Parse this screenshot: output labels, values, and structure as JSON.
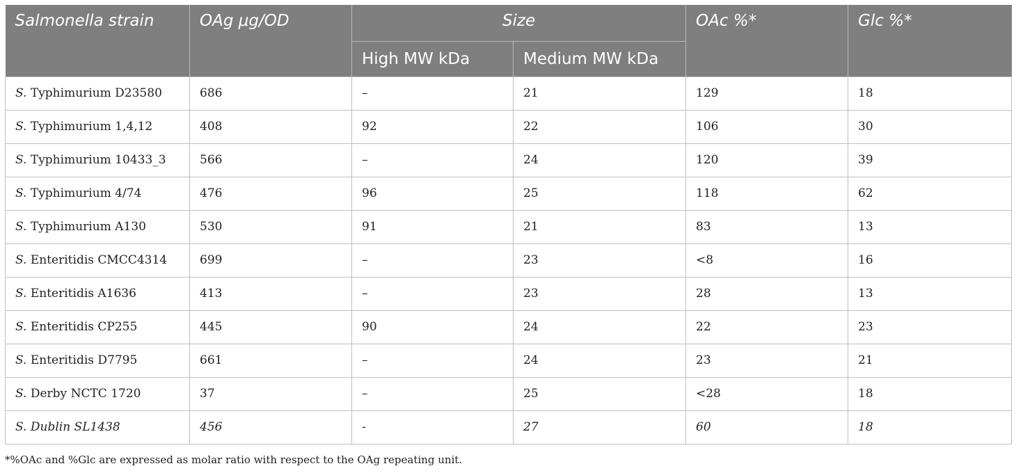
{
  "table": {
    "headers": {
      "strain": "Salmonella strain",
      "oag": "OAg μg/OD",
      "size": "Size",
      "high_mw": "High MW kDa",
      "medium_mw": "Medium MW kDa",
      "oac": "OAc %*",
      "glc": "Glc %*"
    },
    "rows": [
      {
        "prefix": "S.",
        "strain": "Typhimurium D23580",
        "oag": "686",
        "high_mw": "–",
        "medium_mw": "21",
        "oac": "129",
        "glc": "18"
      },
      {
        "prefix": "S.",
        "strain": "Typhimurium 1,4,12",
        "oag": "408",
        "high_mw": "92",
        "medium_mw": "22",
        "oac": "106",
        "glc": "30"
      },
      {
        "prefix": "S.",
        "strain": "Typhimurium 10433_3",
        "oag": "566",
        "high_mw": "–",
        "medium_mw": "24",
        "oac": "120",
        "glc": "39"
      },
      {
        "prefix": "S.",
        "strain": "Typhimurium 4/74",
        "oag": "476",
        "high_mw": "96",
        "medium_mw": "25",
        "oac": "118",
        "glc": "62"
      },
      {
        "prefix": "S.",
        "strain": "Typhimurium A130",
        "oag": "530",
        "high_mw": "91",
        "medium_mw": "21",
        "oac": "83",
        "glc": "13"
      },
      {
        "prefix": "S.",
        "strain": "Enteritidis CMCC4314",
        "oag": "699",
        "high_mw": "–",
        "medium_mw": "23",
        "oac": "<8",
        "glc": "16"
      },
      {
        "prefix": "S.",
        "strain": "Enteritidis A1636",
        "oag": "413",
        "high_mw": "–",
        "medium_mw": "23",
        "oac": "28",
        "glc": "13"
      },
      {
        "prefix": "S.",
        "strain": "Enteritidis CP255",
        "oag": "445",
        "high_mw": "90",
        "medium_mw": "24",
        "oac": "22",
        "glc": "23"
      },
      {
        "prefix": "S.",
        "strain": "Enteritidis D7795",
        "oag": "661",
        "high_mw": "–",
        "medium_mw": "24",
        "oac": "23",
        "glc": "21"
      },
      {
        "prefix": "S.",
        "strain": "Derby NCTC 1720",
        "oag": "37",
        "high_mw": "–",
        "medium_mw": "25",
        "oac": "<28",
        "glc": "18"
      },
      {
        "prefix": "S.",
        "strain": "Dublin SL1438",
        "oag": "456",
        "high_mw": "-",
        "medium_mw": "27",
        "oac": "60",
        "glc": "18",
        "italic": true
      }
    ]
  },
  "footnote": "*%OAc and %Glc are expressed as molar ratio with respect to the OAg repeating unit."
}
